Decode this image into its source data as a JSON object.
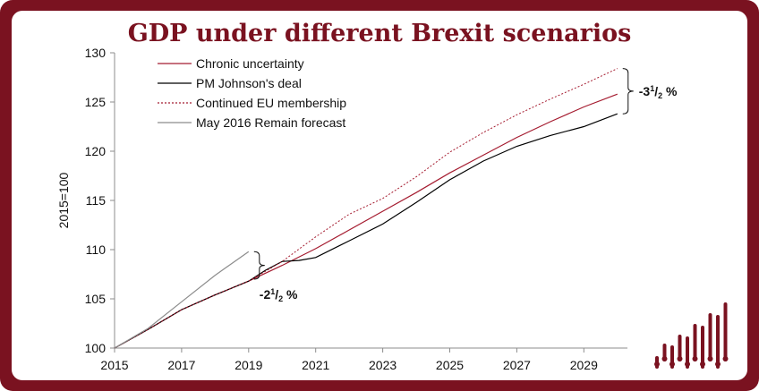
{
  "chart_data": {
    "type": "line",
    "title": "GDP under different Brexit scenarios",
    "ylabel": "2015=100",
    "xlim": [
      2015,
      2030.3
    ],
    "ylim": [
      100,
      130
    ],
    "yticks": [
      100,
      105,
      110,
      115,
      120,
      125,
      130
    ],
    "xticks": [
      2015,
      2017,
      2019,
      2021,
      2023,
      2025,
      2027,
      2029
    ],
    "series": [
      {
        "name": "Chronic uncertainty",
        "style": "solid",
        "color": "#a51c30",
        "points": [
          [
            2015,
            100
          ],
          [
            2016,
            101.9
          ],
          [
            2017,
            103.9
          ],
          [
            2018,
            105.4
          ],
          [
            2019,
            106.8
          ],
          [
            2020,
            108.4
          ],
          [
            2021,
            110.1
          ],
          [
            2022,
            112.0
          ],
          [
            2023,
            113.9
          ],
          [
            2024,
            115.8
          ],
          [
            2025,
            117.8
          ],
          [
            2026,
            119.6
          ],
          [
            2027,
            121.4
          ],
          [
            2028,
            123.0
          ],
          [
            2029,
            124.5
          ],
          [
            2030,
            125.8
          ]
        ]
      },
      {
        "name": "PM Johnson's deal",
        "style": "solid",
        "color": "#000000",
        "points": [
          [
            2015,
            100
          ],
          [
            2016,
            101.9
          ],
          [
            2017,
            103.9
          ],
          [
            2018,
            105.4
          ],
          [
            2019,
            106.8
          ],
          [
            2019.5,
            107.9
          ],
          [
            2020,
            108.8
          ],
          [
            2020.5,
            108.9
          ],
          [
            2021,
            109.2
          ],
          [
            2022,
            110.9
          ],
          [
            2023,
            112.6
          ],
          [
            2024,
            114.8
          ],
          [
            2025,
            117.1
          ],
          [
            2026,
            119.0
          ],
          [
            2027,
            120.5
          ],
          [
            2028,
            121.6
          ],
          [
            2029,
            122.5
          ],
          [
            2030,
            123.8
          ]
        ]
      },
      {
        "name": "Continued EU membership",
        "style": "dashed",
        "color": "#a51c30",
        "points": [
          [
            2015,
            100
          ],
          [
            2016,
            101.9
          ],
          [
            2017,
            103.9
          ],
          [
            2018,
            105.4
          ],
          [
            2019,
            106.8
          ],
          [
            2020,
            108.8
          ],
          [
            2021,
            111.3
          ],
          [
            2022,
            113.6
          ],
          [
            2023,
            115.2
          ],
          [
            2024,
            117.4
          ],
          [
            2025,
            119.9
          ],
          [
            2026,
            121.9
          ],
          [
            2027,
            123.7
          ],
          [
            2028,
            125.3
          ],
          [
            2029,
            126.8
          ],
          [
            2030,
            128.4
          ]
        ]
      },
      {
        "name": "May 2016 Remain forecast",
        "style": "solid",
        "color": "#8c8c8c",
        "points": [
          [
            2015,
            100
          ],
          [
            2016,
            102.0
          ],
          [
            2017,
            104.7
          ],
          [
            2018,
            107.4
          ],
          [
            2019,
            109.8
          ]
        ]
      }
    ],
    "annotations": [
      {
        "text": "-2",
        "sup": "1",
        "sub": "2",
        "suffix": " %",
        "x": 2019,
        "y_range": [
          107.0,
          109.8
        ]
      },
      {
        "text": "-3",
        "sup": "1",
        "sub": "2",
        "suffix": " %",
        "x": 2030,
        "y_range": [
          123.8,
          128.4
        ]
      }
    ]
  },
  "logo": {
    "name": "bars-logo-icon",
    "color": "#7a1220"
  }
}
